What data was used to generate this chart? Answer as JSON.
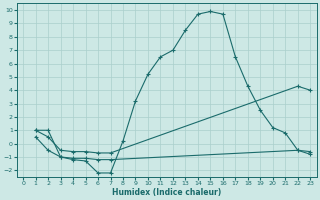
{
  "xlabel": "Humidex (Indice chaleur)",
  "xlim": [
    -0.5,
    23.5
  ],
  "ylim": [
    -2.5,
    10.5
  ],
  "xticks": [
    0,
    1,
    2,
    3,
    4,
    5,
    6,
    7,
    8,
    9,
    10,
    11,
    12,
    13,
    14,
    15,
    16,
    17,
    18,
    19,
    20,
    21,
    22,
    23
  ],
  "yticks": [
    -2,
    -1,
    0,
    1,
    2,
    3,
    4,
    5,
    6,
    7,
    8,
    9,
    10
  ],
  "bg_color": "#cde8e5",
  "line_color": "#1a6b6b",
  "grid_color": "#aacfcc",
  "line1_x": [
    1,
    2,
    3,
    4,
    5,
    6,
    7,
    8,
    9,
    10,
    11,
    12,
    13,
    14,
    15,
    16,
    17,
    18,
    19,
    20,
    21,
    22,
    23
  ],
  "line1_y": [
    1,
    1,
    -1,
    -1.2,
    -1.3,
    -2.2,
    -2.2,
    0.2,
    3.2,
    5.2,
    6.5,
    7.0,
    8.5,
    9.7,
    9.9,
    9.7,
    6.5,
    4.3,
    2.5,
    1.2,
    0.8,
    -0.5,
    -0.8
  ],
  "line2_x": [
    1,
    2,
    3,
    4,
    5,
    6,
    7,
    22,
    23
  ],
  "line2_y": [
    1,
    0.5,
    -0.5,
    -0.6,
    -0.6,
    -0.7,
    -0.7,
    4.3,
    4.0
  ],
  "line3_x": [
    1,
    2,
    3,
    4,
    5,
    6,
    7,
    22,
    23
  ],
  "line3_y": [
    0.5,
    -0.5,
    -1.0,
    -1.1,
    -1.1,
    -1.2,
    -1.2,
    -0.5,
    -0.6
  ]
}
